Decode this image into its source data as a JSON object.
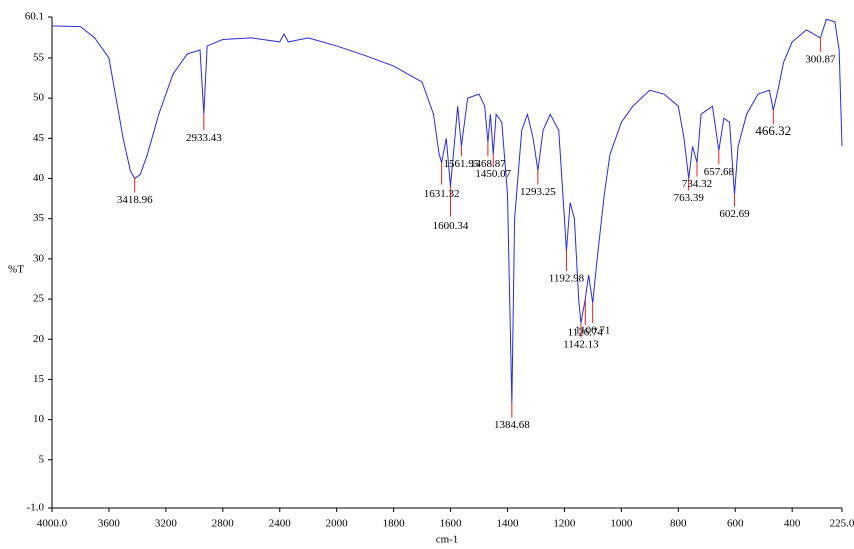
{
  "chart_data": {
    "type": "line",
    "x_label": "cm-1",
    "y_label": "%T",
    "xlim": [
      4000,
      225
    ],
    "x_compression": {
      "above": 2000,
      "factor": 2
    },
    "ylim": [
      -1.0,
      60.1
    ],
    "xticks": [
      {
        "value": 4000,
        "label": "4000.0"
      },
      3600,
      3200,
      2800,
      2400,
      2000,
      1800,
      1600,
      1400,
      1200,
      1000,
      800,
      600,
      400,
      {
        "value": 225,
        "label": "225.0"
      }
    ],
    "yticks": [
      {
        "value": -1,
        "label": "-1.0"
      },
      5,
      10,
      15,
      20,
      25,
      30,
      35,
      40,
      45,
      50,
      55,
      60.1
    ],
    "x": [
      4000,
      3800,
      3700,
      3600,
      3550,
      3500,
      3450,
      3418.96,
      3380,
      3330,
      3250,
      3150,
      3050,
      2960,
      2933.43,
      2910,
      2800,
      2600,
      2400,
      2370,
      2340,
      2200,
      2000,
      1900,
      1800,
      1700,
      1660,
      1640,
      1631.32,
      1615,
      1600.34,
      1585,
      1575,
      1561.95,
      1540,
      1500,
      1480,
      1468.87,
      1460,
      1450.07,
      1440,
      1420,
      1400,
      1384.68,
      1375,
      1350,
      1330,
      1310,
      1293.25,
      1275,
      1250,
      1220,
      1200,
      1192.98,
      1180,
      1165,
      1150,
      1142.13,
      1126.74,
      1115,
      1100.71,
      1085,
      1060,
      1040,
      1000,
      960,
      900,
      850,
      800,
      780,
      763.39,
      750,
      734.32,
      720,
      700,
      680,
      657.68,
      640,
      620,
      602.69,
      590,
      560,
      520,
      480,
      466.32,
      450,
      430,
      400,
      350,
      300.87,
      280,
      250,
      235,
      225
    ],
    "series": [
      {
        "color": "#2b2bd6",
        "values": [
          59.0,
          58.9,
          57.5,
          55,
          50,
          45,
          41,
          40,
          40.5,
          43,
          48,
          53,
          55.5,
          56,
          48,
          56.5,
          57.3,
          57.5,
          57,
          58,
          57,
          57.5,
          56.5,
          55.3,
          54,
          52,
          48,
          43,
          42,
          45,
          39,
          45,
          49,
          44,
          50,
          50.5,
          49,
          44.5,
          48,
          43,
          48,
          47,
          38,
          12,
          35,
          46,
          48,
          45,
          41,
          46,
          48,
          46,
          35,
          31,
          37,
          35,
          25,
          22,
          25,
          28,
          24.5,
          30,
          38,
          43,
          47,
          49,
          51,
          50.5,
          49,
          45,
          40,
          44,
          42,
          48,
          48.5,
          49,
          43.5,
          47.5,
          47,
          38,
          44,
          48,
          50.5,
          51,
          48.5,
          51,
          54.5,
          57,
          58.5,
          57.5,
          59.8,
          59.5,
          56,
          44
        ]
      }
    ],
    "peaks": [
      {
        "x": 3418.96,
        "y": 40
      },
      {
        "x": 2933.43,
        "y": 48
      },
      {
        "x": 1631.32,
        "y": 42
      },
      {
        "x": 1600.34,
        "y": 39
      },
      {
        "x": 1561.95,
        "y": 44
      },
      {
        "x": 1468.87,
        "y": 44.5
      },
      {
        "x": 1450.07,
        "y": 43
      },
      {
        "x": 1384.68,
        "y": 12
      },
      {
        "x": 1293.25,
        "y": 41
      },
      {
        "x": 1192.98,
        "y": 31
      },
      {
        "x": 1142.13,
        "y": 22
      },
      {
        "x": 1126.74,
        "y": 25
      },
      {
        "x": 1100.71,
        "y": 24.5
      },
      {
        "x": 763.39,
        "y": 40
      },
      {
        "x": 734.32,
        "y": 42
      },
      {
        "x": 657.68,
        "y": 43.5
      },
      {
        "x": 602.69,
        "y": 38
      },
      {
        "x": 466.32,
        "y": 48.5
      },
      {
        "x": 300.87,
        "y": 57.5
      }
    ]
  }
}
